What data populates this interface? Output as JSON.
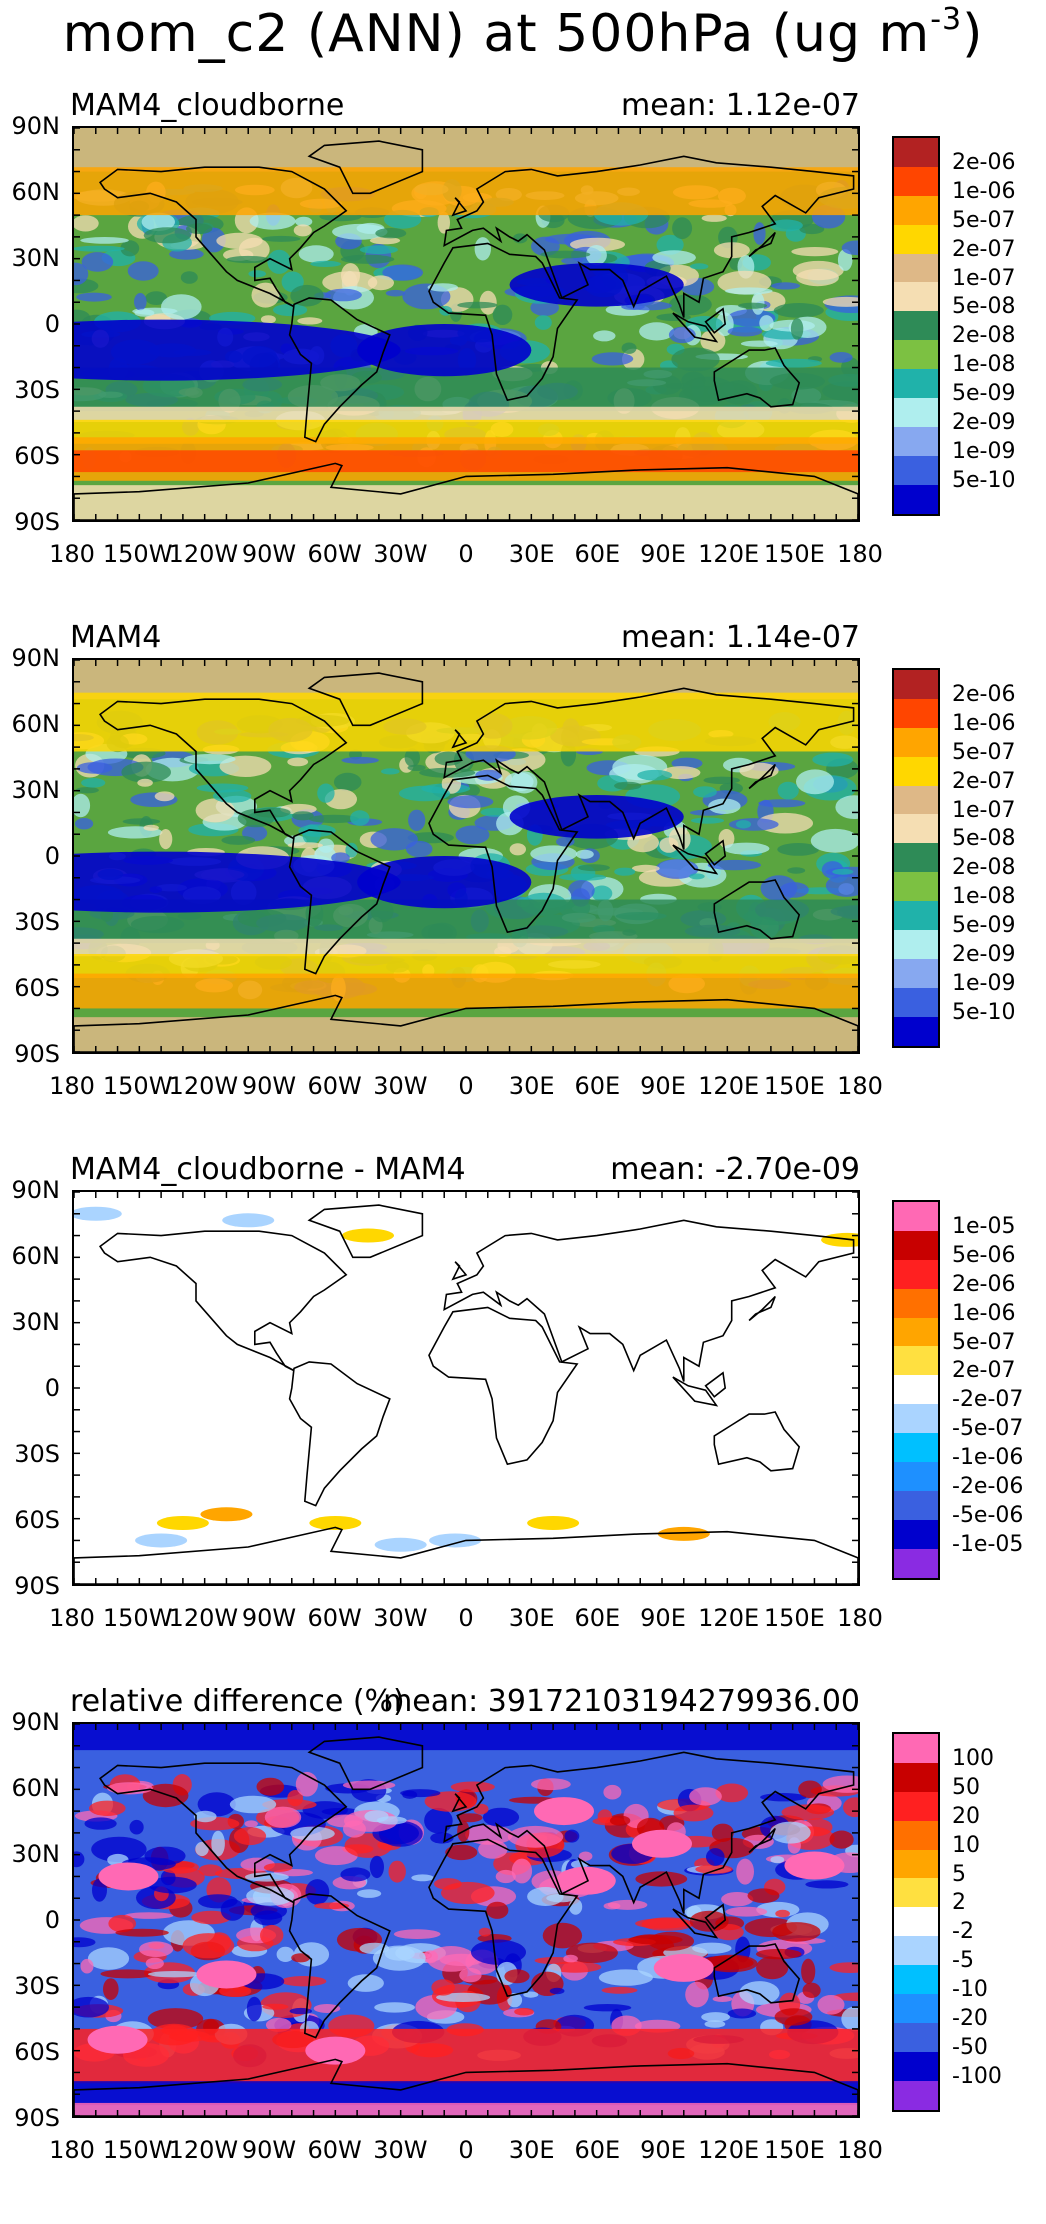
{
  "title": "mom_c2 (ANN) at 500hPa (ug m",
  "title_exp": "-3",
  "title_close": ")",
  "lat_ticks": [
    "90N",
    "60N",
    "30N",
    "0",
    "30S",
    "60S",
    "90S"
  ],
  "lon_ticks": [
    "180",
    "150W",
    "120W",
    "90W",
    "60W",
    "30W",
    "0",
    "30E",
    "60E",
    "90E",
    "120E",
    "150E",
    "180"
  ],
  "panels": [
    {
      "name": "MAM4_cloudborne",
      "mean": "mean: 1.12e-07",
      "background": "#5aa540",
      "colors": [
        "#b22222",
        "#ff4500",
        "#ffa500",
        "#ffd700",
        "#deb887",
        "#f5deb3",
        "#2e8b57",
        "#7cc142",
        "#20b2aa",
        "#afeeee",
        "#87a8f0",
        "#3a60e0",
        "#0000cd"
      ],
      "labels": [
        "2e-06",
        "1e-06",
        "5e-07",
        "2e-07",
        "1e-07",
        "5e-08",
        "2e-08",
        "1e-08",
        "5e-09",
        "2e-09",
        "1e-09",
        "5e-10"
      ],
      "bands": [
        {
          "color": "#deb887",
          "lat": [
            70,
            90
          ]
        },
        {
          "color": "#ffa500",
          "lat": [
            50,
            72
          ]
        },
        {
          "color": "#2e8b57",
          "lat": [
            -40,
            -20
          ]
        },
        {
          "color": "#f5deb3",
          "lat": [
            -45,
            -38
          ]
        },
        {
          "color": "#ffd700",
          "lat": [
            -55,
            -44
          ]
        },
        {
          "color": "#ffa500",
          "lat": [
            -72,
            -52
          ]
        },
        {
          "color": "#ff4500",
          "lat": [
            -68,
            -58
          ]
        },
        {
          "color": "#f5deb3",
          "lat": [
            -90,
            -74
          ]
        }
      ]
    },
    {
      "name": "MAM4",
      "mean": "mean: 1.14e-07",
      "background": "#5aa540",
      "colors": [
        "#b22222",
        "#ff4500",
        "#ffa500",
        "#ffd700",
        "#deb887",
        "#f5deb3",
        "#2e8b57",
        "#7cc142",
        "#20b2aa",
        "#afeeee",
        "#87a8f0",
        "#3a60e0",
        "#0000cd"
      ],
      "labels": [
        "2e-06",
        "1e-06",
        "5e-07",
        "2e-07",
        "1e-07",
        "5e-08",
        "2e-08",
        "1e-08",
        "5e-09",
        "2e-09",
        "1e-09",
        "5e-10"
      ],
      "bands": [
        {
          "color": "#deb887",
          "lat": [
            72,
            90
          ]
        },
        {
          "color": "#ffd700",
          "lat": [
            48,
            75
          ]
        },
        {
          "color": "#2e8b57",
          "lat": [
            -40,
            -20
          ]
        },
        {
          "color": "#f5deb3",
          "lat": [
            -46,
            -38
          ]
        },
        {
          "color": "#ffd700",
          "lat": [
            -56,
            -45
          ]
        },
        {
          "color": "#ffa500",
          "lat": [
            -70,
            -54
          ]
        },
        {
          "color": "#deb887",
          "lat": [
            -90,
            -74
          ]
        }
      ]
    },
    {
      "name": "MAM4_cloudborne - MAM4",
      "mean": "mean: -2.70e-09",
      "background": "#ffffff",
      "colors": [
        "#ff69b4",
        "#c80000",
        "#ff2020",
        "#ff7000",
        "#ffa500",
        "#ffe040",
        "#ffffff",
        "#aad4ff",
        "#00c0ff",
        "#1e90ff",
        "#3a60e0",
        "#0000cd",
        "#8a2be2"
      ],
      "labels": [
        "1e-05",
        "5e-06",
        "2e-06",
        "1e-06",
        "5e-07",
        "2e-07",
        "-2e-07",
        "-5e-07",
        "-1e-06",
        "-2e-06",
        "-5e-06",
        "-1e-05"
      ],
      "bands": []
    },
    {
      "name": "relative difference (%)",
      "mean": "mean: 39172103194279936.00",
      "background": "#3a60e0",
      "colors": [
        "#ff69b4",
        "#c80000",
        "#ff2020",
        "#ff7000",
        "#ffa500",
        "#ffe040",
        "#ffffff",
        "#aad4ff",
        "#00c0ff",
        "#1e90ff",
        "#3a60e0",
        "#0000cd",
        "#8a2be2"
      ],
      "labels": [
        "100",
        "50",
        "20",
        "10",
        "5",
        "2",
        "-2",
        "-5",
        "-10",
        "-20",
        "-50",
        "-100"
      ],
      "bands": [
        {
          "color": "#0000cd",
          "lat": [
            78,
            90
          ]
        },
        {
          "color": "#ff2020",
          "lat": [
            -75,
            -50
          ]
        },
        {
          "color": "#0000cd",
          "lat": [
            -85,
            -74
          ]
        },
        {
          "color": "#ff69b4",
          "lat": [
            -90,
            -84
          ]
        }
      ]
    }
  ]
}
